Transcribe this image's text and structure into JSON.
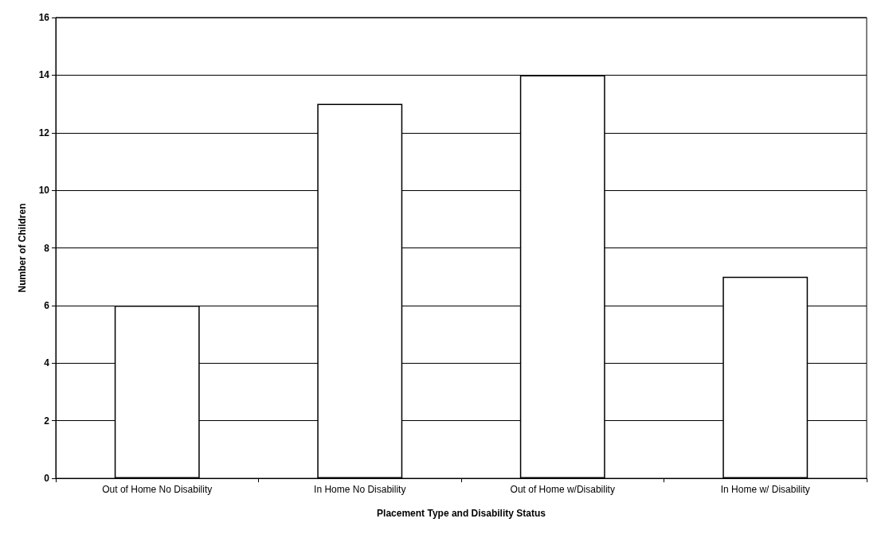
{
  "chart_data": {
    "type": "bar",
    "xlabel": "Placement Type and Disability Status",
    "ylabel": "Number of Children",
    "categories": [
      "Out of Home No Disability",
      "In Home No Disability",
      "Out of Home w/Disability",
      "In Home w/ Disability"
    ],
    "values": [
      6,
      13,
      14,
      7
    ],
    "color": "#ffffff",
    "ylim": [
      0,
      16
    ],
    "yticks": [
      0,
      2,
      4,
      6,
      8,
      10,
      12,
      14,
      16
    ],
    "grid": "y"
  }
}
